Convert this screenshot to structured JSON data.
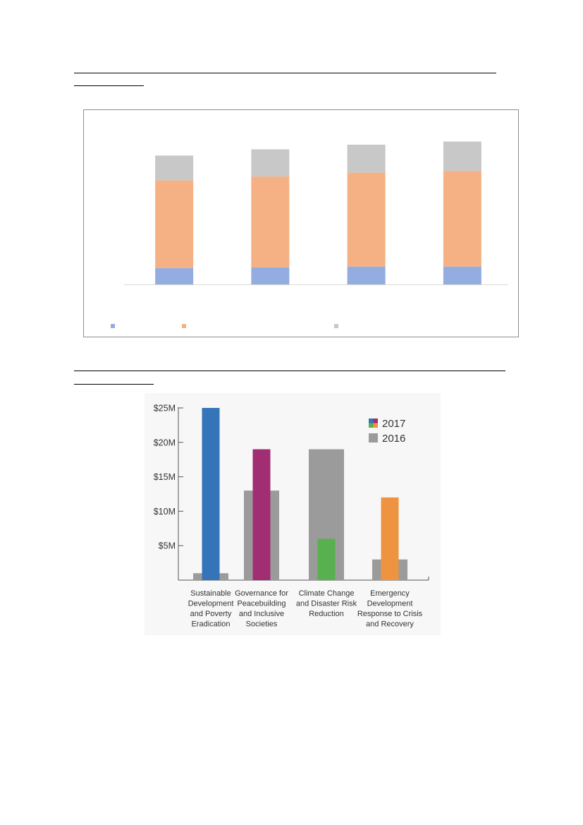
{
  "chart_data": [
    {
      "type": "bar",
      "stacked": true,
      "categories": [
        "",
        "",
        "",
        ""
      ],
      "series": [
        {
          "color": "#93ade1",
          "values": [
            21,
            22,
            23,
            23
          ]
        },
        {
          "color": "#f5b184",
          "values": [
            113,
            117,
            121,
            123
          ]
        },
        {
          "color": "#c8c8c8",
          "values": [
            32,
            35,
            36,
            38
          ]
        }
      ],
      "ylim": [
        0,
        200
      ],
      "grid": false,
      "legend_position": "bottom"
    },
    {
      "type": "bar",
      "categories": [
        "Sustainable Development and Poverty Eradication",
        "Governance for Peacebuilding and Inclusive Societies",
        "Climate Change and Disaster Risk Reduction",
        "Emergency Development Response to Crisis and Recovery"
      ],
      "category_lines": [
        [
          "Sustainable",
          "Development",
          "and Poverty",
          "Eradication"
        ],
        [
          "Governance for",
          "Peacebuilding",
          "and Inclusive",
          "Societies"
        ],
        [
          "Climate Change",
          "and Disaster Risk",
          "Reduction"
        ],
        [
          "Emergency",
          "Development",
          "Response to Crisis",
          "and Recovery"
        ]
      ],
      "series": [
        {
          "name": "2017",
          "values": [
            25,
            19,
            6,
            12
          ],
          "colors": [
            "#3574b8",
            "#a12d72",
            "#58b04f",
            "#ee9440"
          ]
        },
        {
          "name": "2016",
          "values": [
            1,
            13,
            19,
            3
          ],
          "color": "#9b9b9b"
        }
      ],
      "yticks": [
        "$5M",
        "$10M",
        "$15M",
        "$20M",
        "$25M"
      ],
      "ytick_values": [
        5,
        10,
        15,
        20,
        25
      ],
      "ylim": [
        0,
        25
      ],
      "units": "$M",
      "grid": false,
      "legend_position": "top-right"
    }
  ]
}
